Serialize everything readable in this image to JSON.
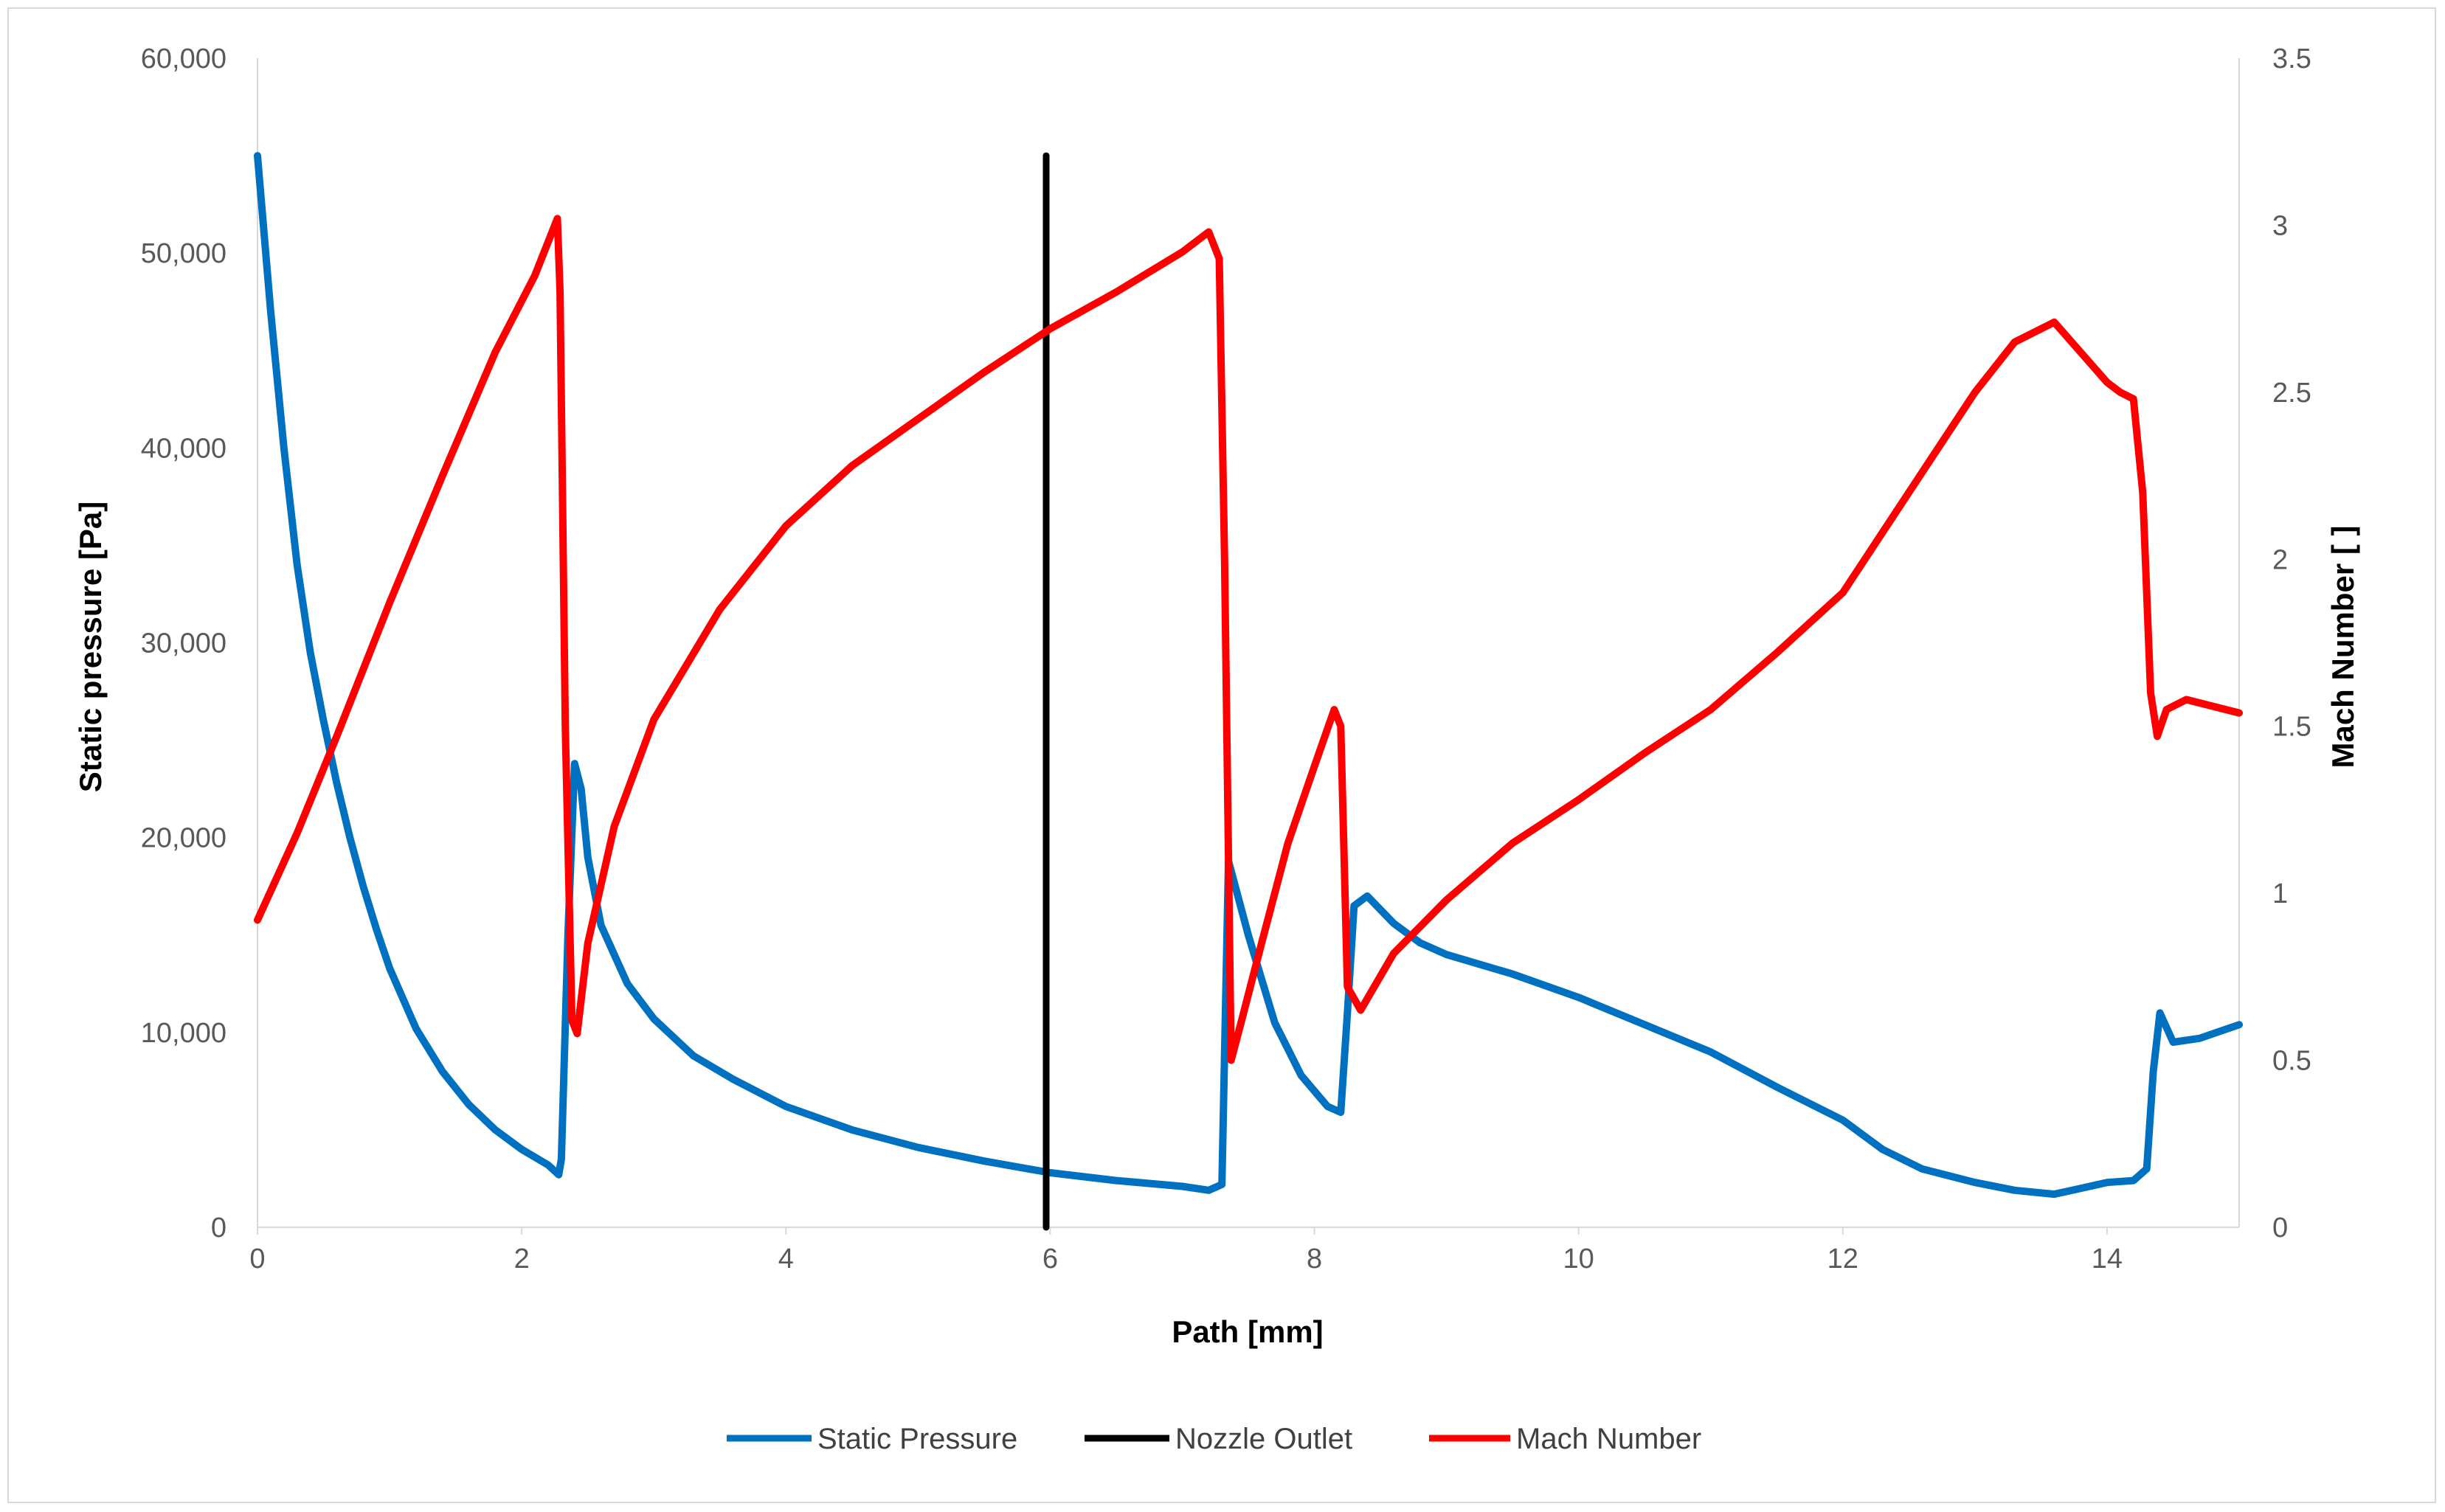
{
  "chart_data": {
    "type": "line",
    "title": "",
    "xlabel": "Path [mm]",
    "ylabel_left": "Static pressure [Pa]",
    "ylabel_right": "Mach Number [ ]",
    "xlim": [
      0,
      15
    ],
    "ylim_left": [
      0,
      60000
    ],
    "ylim_right": [
      0,
      3.5
    ],
    "grid": false,
    "legend_position": "bottom",
    "x_ticks": [
      "0",
      "2",
      "4",
      "6",
      "8",
      "10",
      "12",
      "14"
    ],
    "y_left_ticks": [
      "0",
      "10,000",
      "20,000",
      "30,000",
      "40,000",
      "50,000",
      "60,000"
    ],
    "y_right_ticks": [
      "0",
      "0.5",
      "1",
      "1.5",
      "2",
      "2.5",
      "3",
      "3.5"
    ],
    "series": [
      {
        "name": "Static Pressure",
        "axis": "left",
        "color": "#0070c0",
        "points": [
          [
            0,
            55000
          ],
          [
            0.1,
            47000
          ],
          [
            0.2,
            40000
          ],
          [
            0.3,
            34000
          ],
          [
            0.4,
            29500
          ],
          [
            0.5,
            26000
          ],
          [
            0.6,
            22800
          ],
          [
            0.7,
            20000
          ],
          [
            0.8,
            17500
          ],
          [
            0.9,
            15300
          ],
          [
            1.0,
            13300
          ],
          [
            1.2,
            10200
          ],
          [
            1.4,
            8000
          ],
          [
            1.6,
            6300
          ],
          [
            1.8,
            5000
          ],
          [
            2.0,
            4000
          ],
          [
            2.2,
            3200
          ],
          [
            2.28,
            2700
          ],
          [
            2.3,
            3500
          ],
          [
            2.35,
            15000
          ],
          [
            2.4,
            23800
          ],
          [
            2.45,
            22500
          ],
          [
            2.5,
            19000
          ],
          [
            2.6,
            15500
          ],
          [
            2.8,
            12500
          ],
          [
            3.0,
            10700
          ],
          [
            3.3,
            8800
          ],
          [
            3.6,
            7600
          ],
          [
            4.0,
            6200
          ],
          [
            4.5,
            5000
          ],
          [
            5.0,
            4100
          ],
          [
            5.5,
            3400
          ],
          [
            6.0,
            2800
          ],
          [
            6.5,
            2400
          ],
          [
            7.0,
            2100
          ],
          [
            7.2,
            1900
          ],
          [
            7.3,
            2200
          ],
          [
            7.35,
            18800
          ],
          [
            7.5,
            15000
          ],
          [
            7.7,
            10500
          ],
          [
            7.9,
            7800
          ],
          [
            8.1,
            6200
          ],
          [
            8.2,
            5900
          ],
          [
            8.25,
            11000
          ],
          [
            8.3,
            16500
          ],
          [
            8.4,
            17000
          ],
          [
            8.6,
            15600
          ],
          [
            8.8,
            14600
          ],
          [
            9.0,
            14000
          ],
          [
            9.5,
            13000
          ],
          [
            10.0,
            11800
          ],
          [
            10.5,
            10400
          ],
          [
            11.0,
            9000
          ],
          [
            11.5,
            7200
          ],
          [
            12.0,
            5500
          ],
          [
            12.3,
            4000
          ],
          [
            12.6,
            3000
          ],
          [
            13.0,
            2300
          ],
          [
            13.3,
            1900
          ],
          [
            13.6,
            1700
          ],
          [
            13.8,
            2000
          ],
          [
            14.0,
            2300
          ],
          [
            14.2,
            2400
          ],
          [
            14.3,
            3000
          ],
          [
            14.35,
            8000
          ],
          [
            14.4,
            11000
          ],
          [
            14.5,
            9500
          ],
          [
            14.7,
            9700
          ],
          [
            15.0,
            10400
          ]
        ]
      },
      {
        "name": "Nozzle Outlet",
        "axis": "left",
        "color": "#000000",
        "points": [
          [
            5.97,
            0
          ],
          [
            5.97,
            55000
          ]
        ]
      },
      {
        "name": "Mach Number",
        "axis": "right",
        "color": "#ff0000",
        "points": [
          [
            0,
            0.92
          ],
          [
            0.3,
            1.18
          ],
          [
            0.6,
            1.47
          ],
          [
            1.0,
            1.87
          ],
          [
            1.4,
            2.25
          ],
          [
            1.8,
            2.62
          ],
          [
            2.1,
            2.85
          ],
          [
            2.27,
            3.02
          ],
          [
            2.29,
            2.8
          ],
          [
            2.33,
            1.5
          ],
          [
            2.38,
            0.62
          ],
          [
            2.42,
            0.58
          ],
          [
            2.5,
            0.85
          ],
          [
            2.7,
            1.2
          ],
          [
            3.0,
            1.52
          ],
          [
            3.5,
            1.85
          ],
          [
            4.0,
            2.1
          ],
          [
            4.5,
            2.28
          ],
          [
            5.0,
            2.42
          ],
          [
            5.5,
            2.56
          ],
          [
            6.0,
            2.69
          ],
          [
            6.5,
            2.8
          ],
          [
            7.0,
            2.92
          ],
          [
            7.2,
            2.98
          ],
          [
            7.28,
            2.9
          ],
          [
            7.32,
            2.0
          ],
          [
            7.37,
            0.5
          ],
          [
            7.45,
            0.62
          ],
          [
            7.6,
            0.85
          ],
          [
            7.8,
            1.15
          ],
          [
            8.0,
            1.38
          ],
          [
            8.15,
            1.55
          ],
          [
            8.2,
            1.5
          ],
          [
            8.25,
            0.72
          ],
          [
            8.35,
            0.65
          ],
          [
            8.6,
            0.82
          ],
          [
            9.0,
            0.98
          ],
          [
            9.5,
            1.15
          ],
          [
            10.0,
            1.28
          ],
          [
            10.5,
            1.42
          ],
          [
            11.0,
            1.55
          ],
          [
            11.5,
            1.72
          ],
          [
            12.0,
            1.9
          ],
          [
            12.5,
            2.2
          ],
          [
            13.0,
            2.5
          ],
          [
            13.3,
            2.65
          ],
          [
            13.6,
            2.71
          ],
          [
            13.8,
            2.62
          ],
          [
            14.0,
            2.53
          ],
          [
            14.1,
            2.5
          ],
          [
            14.2,
            2.48
          ],
          [
            14.27,
            2.2
          ],
          [
            14.33,
            1.6
          ],
          [
            14.38,
            1.47
          ],
          [
            14.45,
            1.55
          ],
          [
            14.6,
            1.58
          ],
          [
            15.0,
            1.54
          ]
        ]
      }
    ]
  }
}
